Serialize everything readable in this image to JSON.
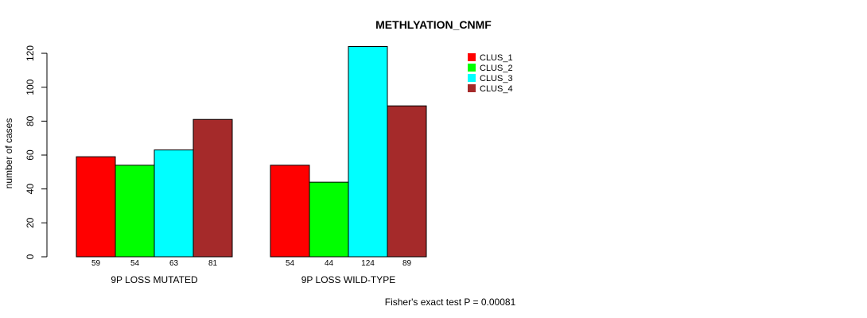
{
  "chart_data": {
    "type": "bar",
    "title": "METHLYATION_CNMF",
    "ylabel": "number of cases",
    "ylim": [
      0,
      120
    ],
    "yticks": [
      0,
      20,
      40,
      60,
      80,
      100,
      120
    ],
    "groups": [
      "9P LOSS MUTATED",
      "9P LOSS WILD-TYPE"
    ],
    "series": [
      {
        "name": "CLUS_1",
        "color": "#ff0000",
        "values": [
          59,
          54
        ]
      },
      {
        "name": "CLUS_2",
        "color": "#00ff00",
        "values": [
          54,
          44
        ]
      },
      {
        "name": "CLUS_3",
        "color": "#00ffff",
        "values": [
          63,
          124
        ]
      },
      {
        "name": "CLUS_4",
        "color": "#a52a2a",
        "values": [
          81,
          89
        ]
      }
    ],
    "legend_position": "top-right",
    "annotation": "Fisher's exact test P = 0.00081"
  }
}
